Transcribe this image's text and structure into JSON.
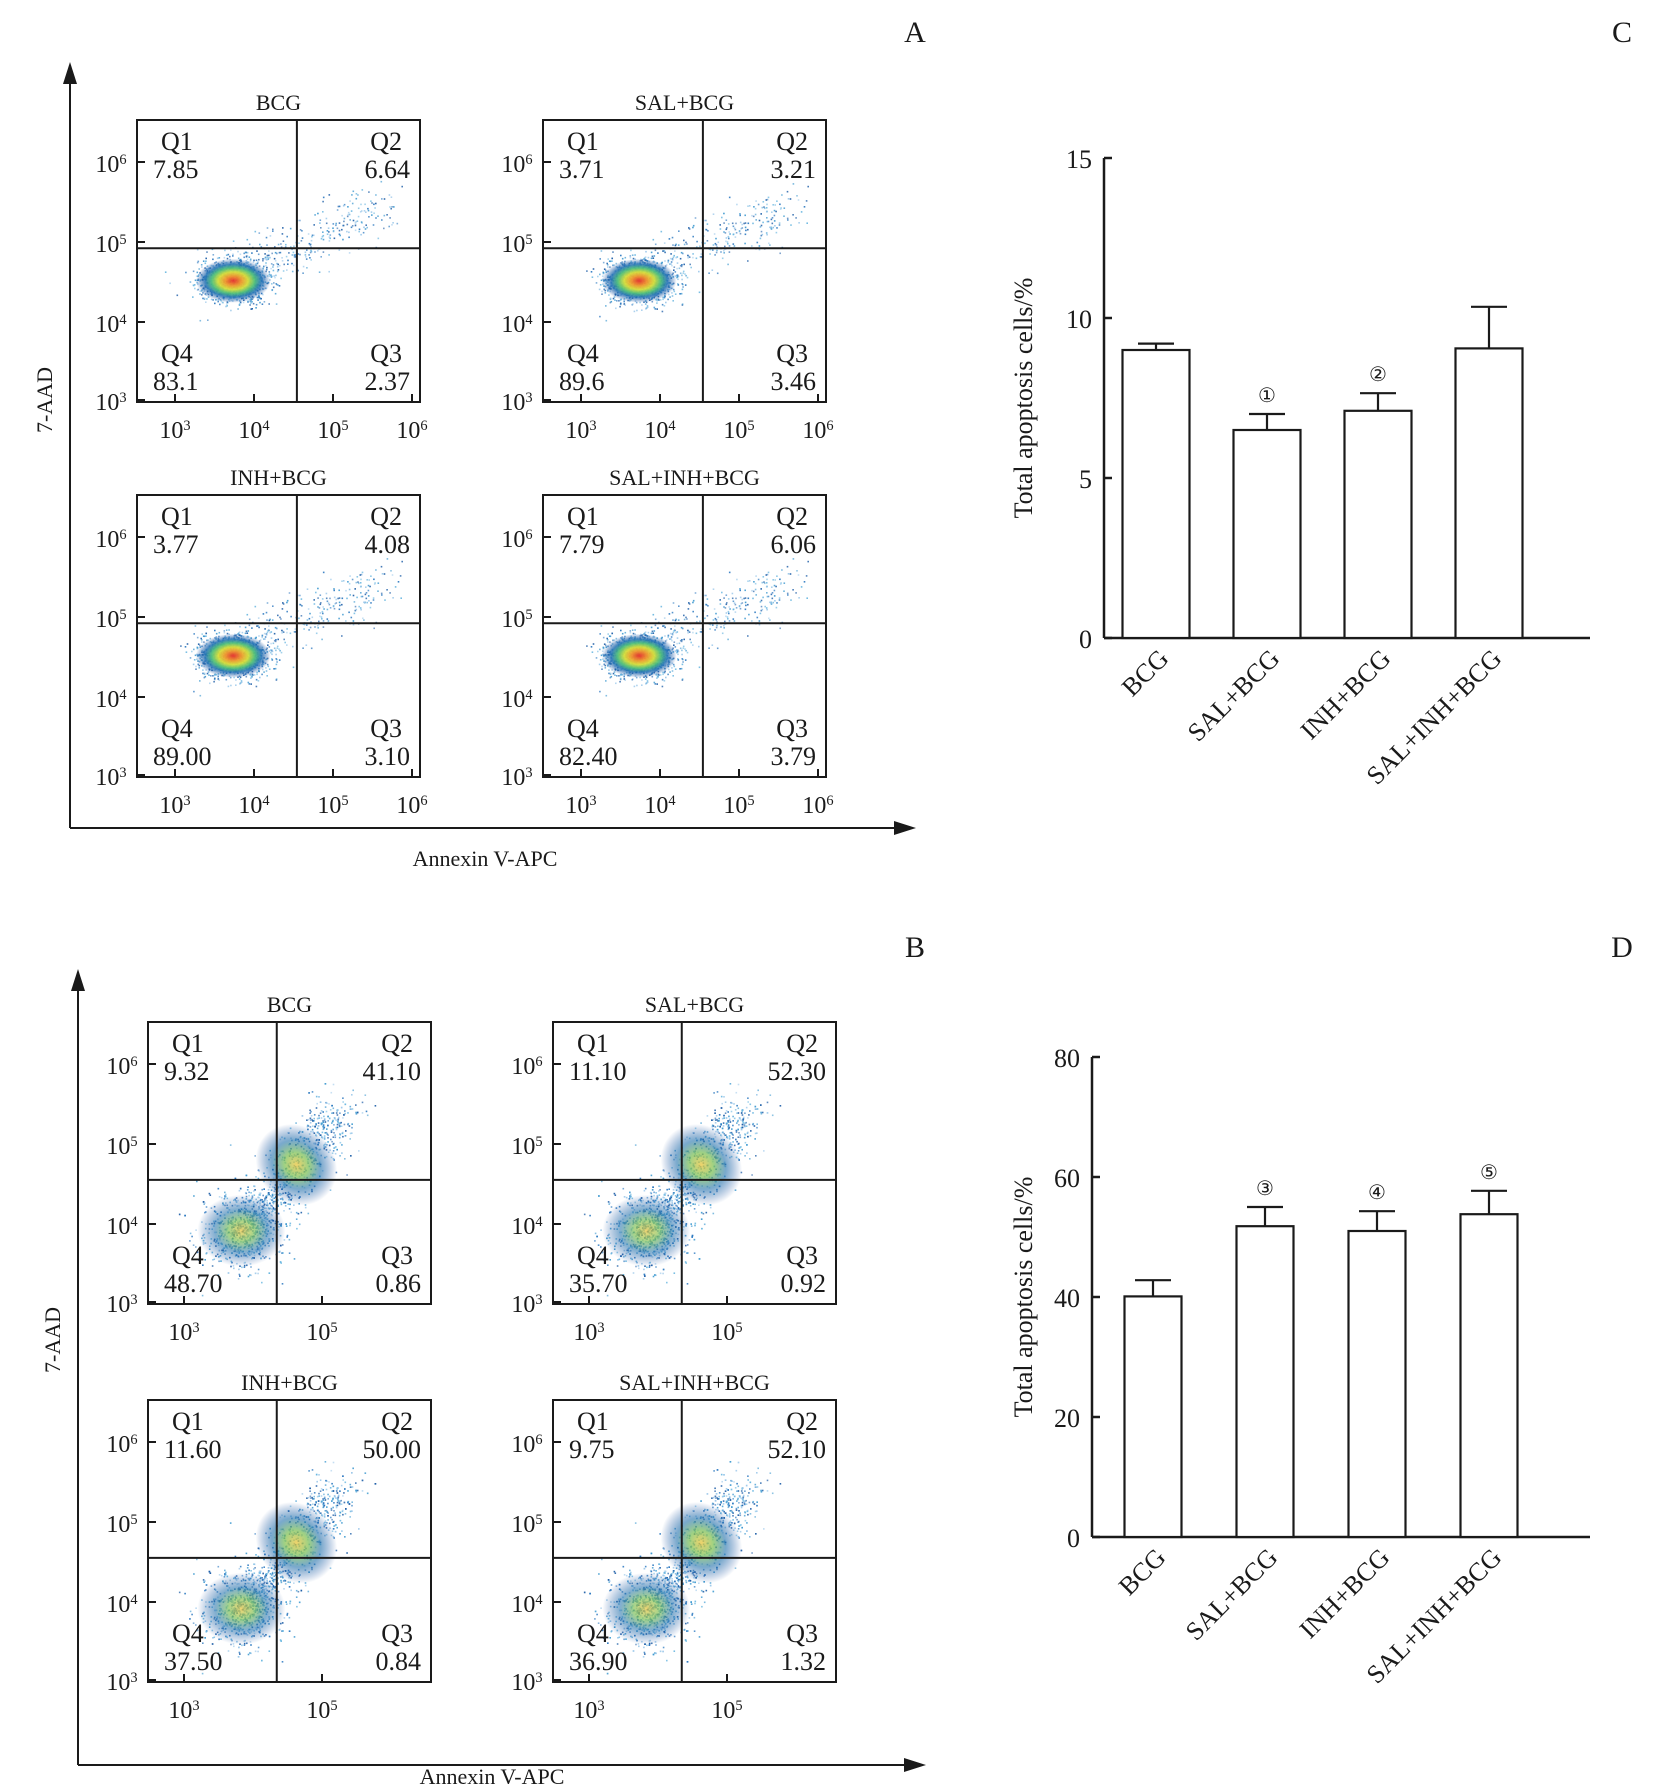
{
  "panel_letters": {
    "A": "A",
    "B": "B",
    "C": "C",
    "D": "D"
  },
  "chart_data": [
    {
      "id": "A",
      "type": "scatter",
      "subtype": "flow-cytometry-quadrant",
      "xlabel": "Annexin V-APC",
      "ylabel": "7-AAD",
      "x_ticks": [
        "10^3",
        "10^4",
        "10^5",
        "10^6"
      ],
      "y_ticks": [
        "10^3",
        "10^4",
        "10^5",
        "10^6"
      ],
      "x_scale": "log",
      "xlim": [
        1000,
        1000000
      ],
      "y_scale": "log",
      "ylim": [
        1000,
        1000000
      ],
      "plots": [
        {
          "title": "BCG",
          "Q1": "7.85",
          "Q2": "6.64",
          "Q3": "2.37",
          "Q4": "83.1"
        },
        {
          "title": "SAL+BCG",
          "Q1": "3.71",
          "Q2": "3.21",
          "Q3": "3.46",
          "Q4": "89.6"
        },
        {
          "title": "INH+BCG",
          "Q1": "3.77",
          "Q2": "4.08",
          "Q3": "3.10",
          "Q4": "89.00"
        },
        {
          "title": "SAL+INH+BCG",
          "Q1": "7.79",
          "Q2": "6.06",
          "Q3": "3.79",
          "Q4": "82.40"
        }
      ]
    },
    {
      "id": "B",
      "type": "scatter",
      "subtype": "flow-cytometry-quadrant",
      "xlabel": "Annexin V-APC",
      "ylabel": "7-AAD",
      "x_ticks": [
        "10^3",
        "10^5"
      ],
      "y_ticks": [
        "10^3",
        "10^4",
        "10^5",
        "10^6"
      ],
      "x_scale": "log",
      "y_scale": "log",
      "ylim": [
        1000,
        1000000
      ],
      "plots": [
        {
          "title": "BCG",
          "Q1": "9.32",
          "Q2": "41.10",
          "Q3": "0.86",
          "Q4": "48.70"
        },
        {
          "title": "SAL+BCG",
          "Q1": "11.10",
          "Q2": "52.30",
          "Q3": "0.92",
          "Q4": "35.70"
        },
        {
          "title": "INH+BCG",
          "Q1": "11.60",
          "Q2": "50.00",
          "Q3": "0.84",
          "Q4": "37.50"
        },
        {
          "title": "SAL+INH+BCG",
          "Q1": "9.75",
          "Q2": "52.10",
          "Q3": "1.32",
          "Q4": "36.90"
        }
      ]
    },
    {
      "id": "C",
      "type": "bar",
      "title": "",
      "xlabel": "",
      "ylabel": "Total apoptosis cells/%",
      "categories": [
        "BCG",
        "SAL+BCG",
        "INH+BCG",
        "SAL+INH+BCG"
      ],
      "values": [
        9.0,
        6.5,
        7.1,
        9.05
      ],
      "error": [
        0.2,
        0.5,
        0.55,
        1.3
      ],
      "annotations": [
        "",
        "①",
        "②",
        ""
      ],
      "ylim": [
        0,
        15
      ],
      "yticks": [
        0,
        5,
        10,
        15
      ],
      "grid": false
    },
    {
      "id": "D",
      "type": "bar",
      "title": "",
      "xlabel": "",
      "ylabel": "Total apoptosis cells/%",
      "categories": [
        "BCG",
        "SAL+BCG",
        "INH+BCG",
        "SAL+INH+BCG"
      ],
      "values": [
        40.1,
        51.8,
        51.0,
        53.8
      ],
      "error": [
        2.7,
        3.2,
        3.3,
        3.9
      ],
      "annotations": [
        "",
        "③",
        "④",
        "⑤"
      ],
      "ylim": [
        0,
        80
      ],
      "yticks": [
        0,
        20,
        40,
        60,
        80
      ],
      "grid": false
    }
  ]
}
